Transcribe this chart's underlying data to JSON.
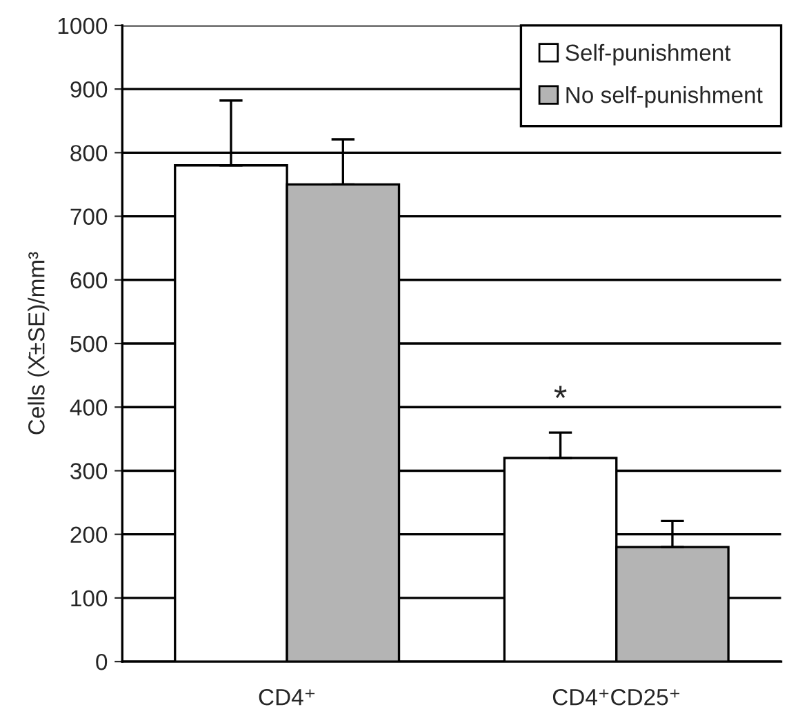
{
  "chart_data": {
    "type": "bar",
    "ylabel": "Cells (X̄±SE)/mm³",
    "categories": [
      "CD4⁺",
      "CD4⁺CD25⁺"
    ],
    "series": [
      {
        "name": "Self-punishment",
        "color": "#ffffff",
        "values": [
          780,
          320
        ],
        "errors": [
          [
            780,
            882
          ],
          [
            320,
            360
          ]
        ]
      },
      {
        "name": "No self-punishment",
        "color": "#b4b4b4",
        "values": [
          750,
          180
        ],
        "errors": [
          [
            750,
            821
          ],
          [
            180,
            221
          ]
        ]
      }
    ],
    "ylim": [
      0,
      1000
    ],
    "yticks": [
      0,
      100,
      200,
      300,
      400,
      500,
      600,
      700,
      800,
      900,
      1000
    ],
    "grid": "y",
    "legend": "top right",
    "annotations": [
      "*"
    ]
  }
}
